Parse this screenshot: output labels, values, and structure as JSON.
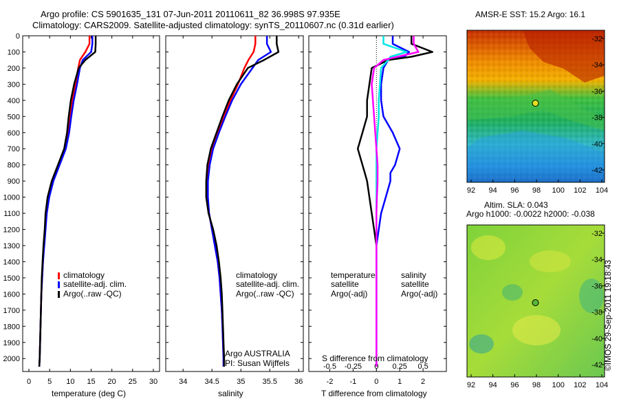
{
  "header": {
    "title_line1": "Argo profile: CS 5901635_131 07-Jun-2011 20110611_82 36.998S 97.935E",
    "title_line2": "Climatology: CARS2009. Satellite-adjusted climatology: synTS_20110607.nc (0.31d earlier)"
  },
  "colors": {
    "climatology": "#ff0000",
    "satellite_adj": "#0000ff",
    "argo": "#000000",
    "cyan": "#00e5e5",
    "magenta": "#ff00ff"
  },
  "depth_axis": {
    "range": [
      0,
      2080
    ],
    "ticks": [
      0,
      100,
      200,
      300,
      400,
      500,
      600,
      700,
      800,
      900,
      1000,
      1100,
      1200,
      1300,
      1400,
      1500,
      1600,
      1700,
      1800,
      1900,
      2000
    ]
  },
  "chart_data": [
    {
      "type": "line",
      "id": "temperature",
      "xlabel": "temperature (deg C)",
      "xlim": [
        -1.5,
        31.5
      ],
      "xticks": [
        0,
        5,
        10,
        15,
        20,
        25,
        30
      ],
      "legend": [
        "climatology",
        "satellite-adj. clim.",
        "Argo(..raw -QC)"
      ],
      "depth": [
        0,
        50,
        100,
        150,
        200,
        300,
        400,
        500,
        600,
        700,
        800,
        900,
        1000,
        1100,
        1200,
        1300,
        1400,
        1500,
        1600,
        1700,
        1800,
        1900,
        2000,
        2050
      ],
      "series": [
        {
          "name": "climatology",
          "color": "#ff0000",
          "values": [
            14.6,
            14.6,
            13.6,
            12.3,
            11.9,
            11.2,
            10.5,
            10.0,
            9.5,
            8.6,
            7.2,
            5.7,
            4.7,
            4.2,
            3.9,
            3.6,
            3.4,
            3.2,
            3.0,
            2.9,
            2.8,
            2.7,
            2.6,
            2.5
          ]
        },
        {
          "name": "satellite-adj. clim.",
          "color": "#0000ff",
          "values": [
            15.3,
            15.3,
            15.0,
            13.0,
            12.3,
            11.6,
            10.8,
            10.2,
            9.7,
            8.9,
            7.4,
            5.9,
            4.9,
            4.3,
            4.0,
            3.7,
            3.4,
            3.2,
            3.0,
            2.9,
            2.8,
            2.7,
            2.6,
            2.5
          ]
        },
        {
          "name": "Argo(..raw -QC)",
          "color": "#000000",
          "values": [
            16.1,
            16.1,
            16.0,
            13.6,
            12.0,
            10.9,
            10.1,
            9.6,
            9.2,
            8.5,
            7.0,
            5.5,
            4.5,
            4.0,
            3.8,
            3.5,
            3.3,
            3.1,
            3.0,
            2.9,
            2.8,
            2.7,
            2.6,
            2.5
          ]
        }
      ]
    },
    {
      "type": "line",
      "id": "salinity",
      "xlabel": "salinity",
      "xlim": [
        33.7,
        36.08
      ],
      "xticks": [
        34,
        34.5,
        35,
        35.5,
        36
      ],
      "xtick_labels": [
        "34",
        "34.5",
        "35",
        "35.5",
        "36"
      ],
      "legend": [
        "climatology",
        "satellite-adj. clim.",
        "Argo(..raw -QC)"
      ],
      "annotation_line1": "Argo AUSTRALIA",
      "annotation_line2": "PI: Susan Wijffels",
      "depth": [
        0,
        50,
        100,
        150,
        200,
        300,
        400,
        500,
        600,
        700,
        800,
        900,
        1000,
        1100,
        1200,
        1300,
        1400,
        1500,
        1600,
        1700,
        1800,
        1900,
        2000,
        2050
      ],
      "series": [
        {
          "name": "climatology",
          "color": "#ff0000",
          "values": [
            35.25,
            35.25,
            35.22,
            35.13,
            35.06,
            34.95,
            34.82,
            34.7,
            34.6,
            34.5,
            34.45,
            34.42,
            34.42,
            34.45,
            34.5,
            34.55,
            34.6,
            34.63,
            34.65,
            34.67,
            34.68,
            34.69,
            34.7,
            34.7
          ]
        },
        {
          "name": "satellite-adj. clim.",
          "color": "#0000ff",
          "values": [
            35.45,
            35.45,
            35.52,
            35.3,
            35.2,
            35.0,
            34.85,
            34.73,
            34.62,
            34.52,
            34.46,
            34.43,
            34.43,
            34.45,
            34.5,
            34.55,
            34.6,
            34.63,
            34.65,
            34.67,
            34.68,
            34.69,
            34.7,
            34.7
          ]
        },
        {
          "name": "Argo(..raw -QC)",
          "color": "#000000",
          "values": [
            35.62,
            35.62,
            35.65,
            35.4,
            35.12,
            34.93,
            34.79,
            34.68,
            34.58,
            34.48,
            34.42,
            34.4,
            34.4,
            34.44,
            34.52,
            34.58,
            34.62,
            34.65,
            34.67,
            34.68,
            34.69,
            34.7,
            34.71,
            34.71
          ]
        }
      ]
    },
    {
      "type": "line",
      "id": "difference",
      "xlabel": "T difference from climatology",
      "xlabel_top": "S difference from climatology",
      "xlim": [
        -2.9,
        3.0
      ],
      "xticks": [
        -2,
        -1,
        0,
        1,
        2
      ],
      "xtick_labels": [
        "-2",
        "-1",
        "0",
        "1",
        "2"
      ],
      "top_ticks": [
        "-0.5",
        "-0.25",
        "0",
        "0.25",
        "0.5"
      ],
      "legend_title_temperature": "temperature",
      "legend_title_salinity": "salinity",
      "legend_temperature": [
        "satellite",
        "Argo(-adj)"
      ],
      "legend_salinity": [
        "satellite",
        "Argo(-adj)"
      ],
      "depth": [
        0,
        50,
        100,
        130,
        150,
        200,
        300,
        400,
        500,
        600,
        700,
        800,
        850,
        900,
        1000,
        1100,
        1200,
        1300,
        1400,
        1500,
        1600,
        1700,
        1800,
        1900,
        2000,
        2050
      ],
      "series": [
        {
          "name": "temperature satellite",
          "color": "#0000ff",
          "values": [
            0.7,
            0.7,
            1.4,
            1.2,
            0.5,
            0.3,
            0.2,
            0.2,
            0.3,
            0.7,
            1.0,
            0.8,
            0.6,
            0.6,
            0.4,
            0.2,
            0.1,
            0.0,
            0.0,
            0.0,
            0.0,
            0.0,
            0.0,
            0.0,
            0.0,
            0.0
          ]
        },
        {
          "name": "temperature Argo(-adj)",
          "color": "#000000",
          "values": [
            1.5,
            1.5,
            2.4,
            1.5,
            0.5,
            -0.2,
            -0.3,
            -0.4,
            -0.4,
            -0.6,
            -0.8,
            -0.6,
            -0.5,
            -0.4,
            -0.3,
            -0.2,
            -0.1,
            0.0,
            0.0,
            0.0,
            0.0,
            0.0,
            0.0,
            0.0,
            0.0,
            0.0
          ]
        },
        {
          "name": "salinity satellite",
          "color": "#00e5e5",
          "values": [
            0.3,
            0.3,
            1.3,
            0.6,
            0.5,
            0.2,
            0.15,
            0.1,
            0.1,
            0.05,
            0.0,
            0.0,
            0.0,
            0.0,
            0.0,
            0.0,
            0.0,
            0.0,
            0.0,
            0.0,
            0.0,
            0.0,
            0.0,
            0.0,
            0.0,
            0.0
          ]
        },
        {
          "name": "salinity Argo(-adj)",
          "color": "#ff00ff",
          "values": [
            1.6,
            1.6,
            1.8,
            0.9,
            0.3,
            -0.1,
            -0.2,
            -0.15,
            -0.1,
            -0.05,
            0.0,
            0.05,
            0.05,
            0.05,
            0.02,
            0.0,
            0.0,
            0.0,
            0.0,
            0.0,
            0.0,
            0.0,
            0.0,
            0.0,
            0.0,
            0.0
          ]
        }
      ]
    },
    {
      "type": "heatmap",
      "id": "sst_map",
      "title": "AMSR-E SST: 15.2 Argo: 16.1",
      "xticks": [
        "92",
        "94",
        "96",
        "98",
        "100",
        "102",
        "104"
      ],
      "yticks": [
        "-32",
        "-34",
        "-36",
        "-38",
        "-40",
        "-42"
      ],
      "marker_lon": 97.935,
      "marker_lat": -36.998
    },
    {
      "type": "heatmap",
      "id": "sla_map",
      "title_line1": "Altim. SLA: 0.043",
      "title_line2": "Argo h1000: -0.0022 h2000: -0.038",
      "xticks": [
        "92",
        "94",
        "96",
        "98",
        "100",
        "102",
        "104"
      ],
      "yticks": [
        "-32",
        "-34",
        "-36",
        "-38",
        "-40",
        "-42"
      ],
      "marker_lon": 97.935,
      "marker_lat": -36.998
    }
  ],
  "footer": {
    "credit": "©IMOS 29-Sep-2011 19:18:43"
  }
}
